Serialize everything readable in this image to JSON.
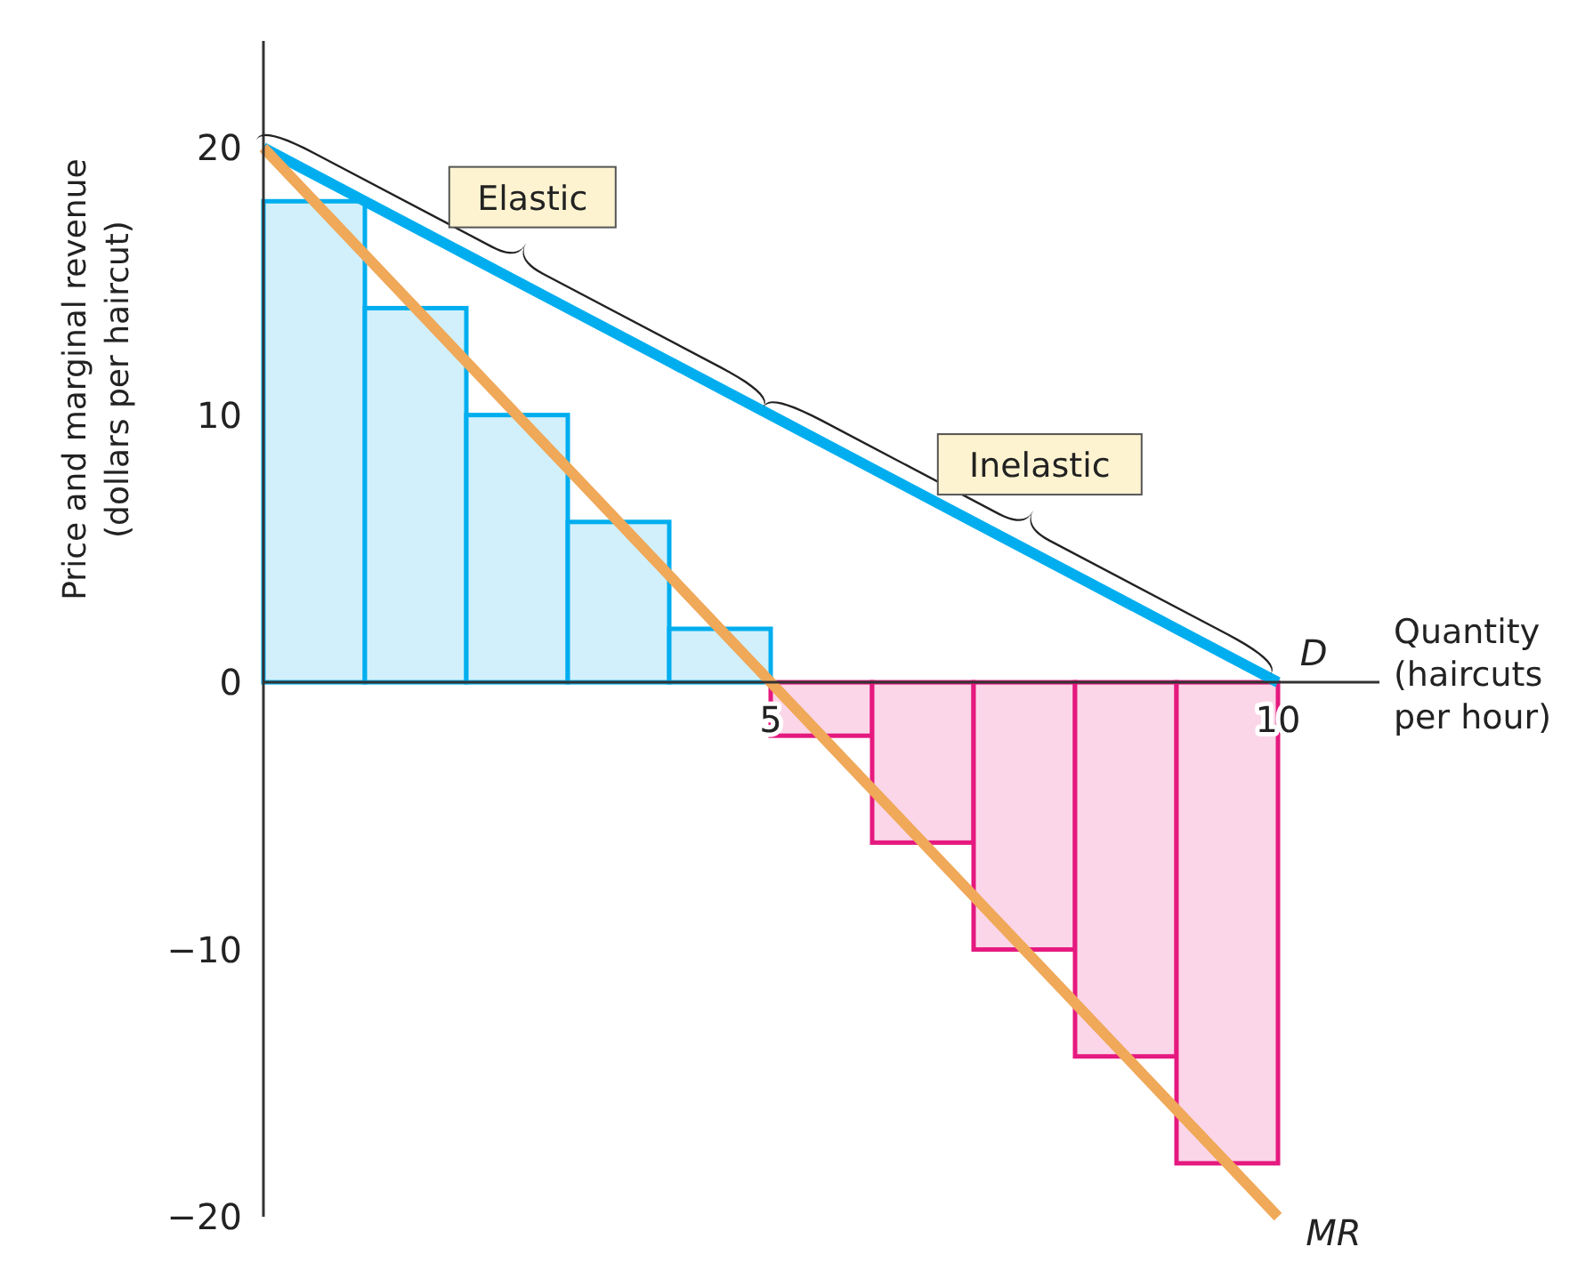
{
  "chart_data": {
    "type": "line",
    "xlabel": "Quantity (haircuts per hour)",
    "ylabel": "Price and marginal revenue (dollars per haircut)",
    "xlim": [
      0,
      11
    ],
    "ylim": [
      -20,
      24
    ],
    "xticks": [
      5,
      10
    ],
    "yticks": [
      -20,
      -10,
      0,
      10,
      20
    ],
    "grid": false,
    "legend": false,
    "series": [
      {
        "type": "histogram",
        "bins": [
          0,
          1,
          2,
          3,
          4,
          5,
          6,
          7,
          8,
          9,
          10
        ],
        "values": [
          18,
          14,
          10,
          6,
          2,
          -2,
          -6,
          -10,
          -14,
          -18
        ],
        "colors": [
          "#00aeef",
          "#00aeef",
          "#00aeef",
          "#00aeef",
          "#00aeef",
          "#e5197f",
          "#e5197f",
          "#e5197f",
          "#e5197f",
          "#e5197f"
        ]
      },
      {
        "name": "D",
        "type": "line",
        "x": [
          0,
          1,
          2,
          3,
          4,
          5,
          6,
          7,
          8,
          9,
          10
        ],
        "values": [
          20,
          18,
          16,
          14,
          12,
          10,
          8,
          6,
          4,
          2,
          0
        ],
        "color": "#00aeef"
      },
      {
        "name": "MR",
        "type": "line",
        "x": [
          0,
          1,
          2,
          3,
          4,
          5,
          6,
          7,
          8,
          9,
          10
        ],
        "values": [
          20,
          16,
          12,
          8,
          4,
          0,
          -4,
          -8,
          -12,
          -16,
          -20
        ],
        "color": "#f0a859"
      }
    ],
    "annotations": [
      "Elastic",
      "Inelastic"
    ]
  }
}
